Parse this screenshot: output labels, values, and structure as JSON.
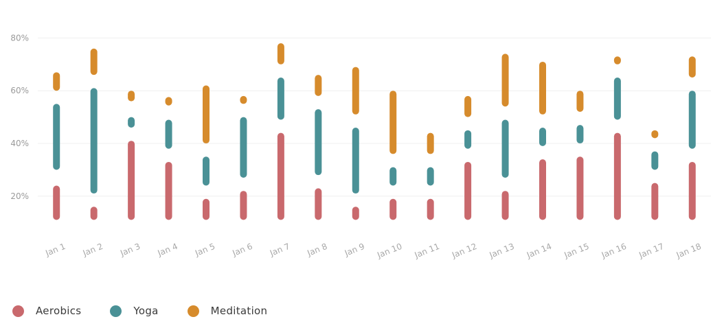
{
  "chart_data": {
    "type": "range-bar",
    "categories": [
      "Jan 1",
      "Jan 2",
      "Jan 3",
      "Jan 4",
      "Jan 5",
      "Jan 6",
      "Jan 7",
      "Jan 8",
      "Jan 9",
      "Jan 10",
      "Jan 11",
      "Jan 12",
      "Jan 13",
      "Jan 14",
      "Jan 15",
      "Jan 16",
      "Jan 17",
      "Jan 18"
    ],
    "ylim": [
      8,
      84
    ],
    "yticks": [
      20,
      40,
      60,
      80
    ],
    "ytick_labels": [
      "20%",
      "40%",
      "60%",
      "80%"
    ],
    "grid": true,
    "legend_position": "bottom-left",
    "series": [
      {
        "name": "Aerobics",
        "color": "#c9696d",
        "ranges": [
          [
            11,
            24
          ],
          [
            11,
            16
          ],
          [
            11,
            41
          ],
          [
            11,
            33
          ],
          [
            11,
            19
          ],
          [
            11,
            22
          ],
          [
            11,
            44
          ],
          [
            11,
            23
          ],
          [
            11,
            16
          ],
          [
            11,
            19
          ],
          [
            11,
            19
          ],
          [
            11,
            33
          ],
          [
            11,
            22
          ],
          [
            11,
            34
          ],
          [
            11,
            35
          ],
          [
            11,
            44
          ],
          [
            11,
            25
          ],
          [
            11,
            33
          ]
        ]
      },
      {
        "name": "Yoga",
        "color": "#4a9196",
        "ranges": [
          [
            30,
            55
          ],
          [
            21,
            61
          ],
          [
            46,
            50
          ],
          [
            38,
            49
          ],
          [
            24,
            35
          ],
          [
            27,
            50
          ],
          [
            49,
            65
          ],
          [
            28,
            53
          ],
          [
            21,
            46
          ],
          [
            24,
            31
          ],
          [
            24,
            31
          ],
          [
            38,
            45
          ],
          [
            27,
            49
          ],
          [
            39,
            46
          ],
          [
            40,
            47
          ],
          [
            49,
            65
          ],
          [
            30,
            37
          ],
          [
            38,
            60
          ]
        ]
      },
      {
        "name": "Meditation",
        "color": "#d68b2c",
        "ranges": [
          [
            60,
            67
          ],
          [
            66,
            76
          ],
          [
            56,
            60
          ],
          [
            55,
            57
          ],
          [
            40,
            62
          ],
          [
            55,
            58
          ],
          [
            70,
            78
          ],
          [
            58,
            66
          ],
          [
            51,
            69
          ],
          [
            36,
            60
          ],
          [
            36,
            44
          ],
          [
            50,
            58
          ],
          [
            54,
            74
          ],
          [
            51,
            71
          ],
          [
            52,
            60
          ],
          [
            70,
            73
          ],
          [
            42,
            45
          ],
          [
            65,
            73
          ]
        ]
      }
    ]
  }
}
